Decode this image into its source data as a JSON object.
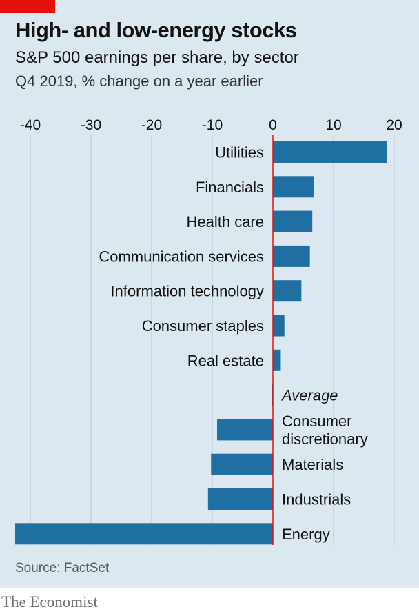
{
  "header": {
    "title": "High- and low-energy stocks",
    "subtitle": "S&P 500 earnings per share, by sector",
    "subtitle2": "Q4 2019, % change on a year earlier"
  },
  "footer": {
    "source": "Source: FactSet",
    "logo": "The Economist"
  },
  "colors": {
    "background": "#dce8f0",
    "bar": "#1f6fa3",
    "zero_line": "#e3120b",
    "grid": "#b4c6d2",
    "accent": "#e3120b"
  },
  "chart_data": {
    "type": "bar",
    "orientation": "horizontal",
    "title": "High- and low-energy stocks",
    "subtitle": "S&P 500 earnings per share, by sector",
    "xlabel": "Q4 2019, % change on a year earlier",
    "ylabel": "",
    "xlim": [
      -42,
      20
    ],
    "xticks": [
      "-40",
      "-30",
      "-20",
      "-10",
      "0",
      "10",
      "20"
    ],
    "tick_values": [
      -40,
      -30,
      -20,
      -10,
      0,
      10,
      20
    ],
    "grid": true,
    "categories": [
      "Utilities",
      "Financials",
      "Health care",
      "Communication services",
      "Information technology",
      "Consumer staples",
      "Real estate",
      "Average",
      "Consumer discretionary",
      "Materials",
      "Industrials",
      "Energy"
    ],
    "values": [
      18.8,
      6.7,
      6.5,
      6.1,
      4.7,
      1.9,
      1.3,
      -0.2,
      -9.2,
      -10.2,
      -10.7,
      -42.5
    ],
    "highlight": [
      "Average"
    ]
  }
}
